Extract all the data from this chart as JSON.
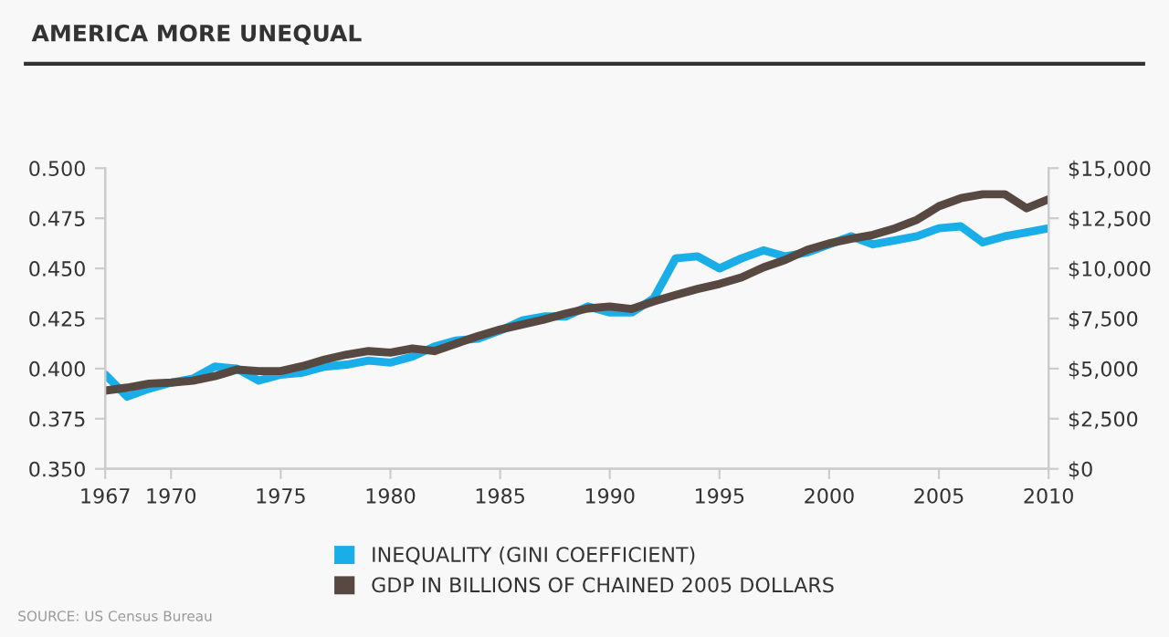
{
  "chart_data": {
    "type": "line",
    "title": "AMERICA MORE UNEQUAL",
    "x": [
      1967,
      1968,
      1969,
      1970,
      1971,
      1972,
      1973,
      1974,
      1975,
      1976,
      1977,
      1978,
      1979,
      1980,
      1981,
      1982,
      1983,
      1984,
      1985,
      1986,
      1987,
      1988,
      1989,
      1990,
      1991,
      1992,
      1993,
      1994,
      1995,
      1996,
      1997,
      1998,
      1999,
      2000,
      2001,
      2002,
      2003,
      2004,
      2005,
      2006,
      2007,
      2008,
      2009,
      2010
    ],
    "series": [
      {
        "name": "INEQUALITY (GINI COEFFICIENT)",
        "color": "#1aaee8",
        "values": [
          0.397,
          0.386,
          0.39,
          0.393,
          0.395,
          0.401,
          0.4,
          0.394,
          0.397,
          0.398,
          0.401,
          0.402,
          0.404,
          0.403,
          0.406,
          0.411,
          0.414,
          0.415,
          0.419,
          0.424,
          0.426,
          0.426,
          0.431,
          0.428,
          0.428,
          0.435,
          0.455,
          0.456,
          0.45,
          0.455,
          0.459,
          0.456,
          0.458,
          0.462,
          0.466,
          0.462,
          0.464,
          0.466,
          0.47,
          0.471,
          0.463,
          0.466,
          0.468,
          0.47
        ]
      },
      {
        "name": "GDP IN BILLIONS OF CHAINED 2005 DOLLARS",
        "color": "#574842",
        "axis": "y2",
        "values": [
          3900,
          4050,
          4250,
          4300,
          4400,
          4625,
          4950,
          4875,
          4875,
          5125,
          5450,
          5700,
          5875,
          5800,
          6000,
          5875,
          6250,
          6625,
          6950,
          7200,
          7450,
          7750,
          8000,
          8100,
          7975,
          8350,
          8675,
          8975,
          9225,
          9550,
          10050,
          10425,
          10925,
          11250,
          11475,
          11675,
          12000,
          12425,
          13100,
          13500,
          13700,
          13700,
          13000,
          13450
        ]
      }
    ],
    "xlim": [
      1967,
      2010
    ],
    "xticks": [
      1967,
      1970,
      1975,
      1980,
      1985,
      1990,
      1995,
      2000,
      2005,
      2010
    ],
    "ylim": [
      0.35,
      0.5
    ],
    "yticks": [
      {
        "value": 0.35,
        "label": "0.350"
      },
      {
        "value": 0.375,
        "label": "0.375"
      },
      {
        "value": 0.4,
        "label": "0.400"
      },
      {
        "value": 0.425,
        "label": "0.425"
      },
      {
        "value": 0.45,
        "label": "0.450"
      },
      {
        "value": 0.475,
        "label": "0.475"
      },
      {
        "value": 0.5,
        "label": "0.500"
      }
    ],
    "y2lim": [
      0,
      15000
    ],
    "y2ticks": [
      {
        "value": 0,
        "label": "$0"
      },
      {
        "value": 2500,
        "label": "$2,500"
      },
      {
        "value": 5000,
        "label": "$5,000"
      },
      {
        "value": 7500,
        "label": "$7,500"
      },
      {
        "value": 10000,
        "label": "$10,000"
      },
      {
        "value": 12500,
        "label": "$12,500"
      },
      {
        "value": 15000,
        "label": "$15,000"
      }
    ],
    "grid": false,
    "legend": "bottom",
    "marker": "none",
    "line_style": "solid",
    "annotations": [
      "SOURCE: US Census Bureau"
    ]
  }
}
